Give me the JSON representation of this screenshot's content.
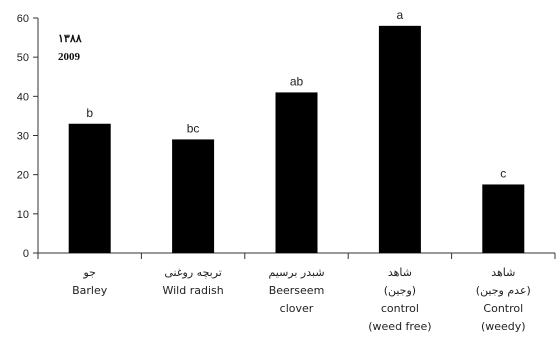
{
  "chart_data": {
    "type": "bar",
    "title": "",
    "xlabel": "",
    "ylabel": "",
    "ylim": [
      0,
      60
    ],
    "yticks": [
      "0",
      "10",
      "20",
      "30",
      "40",
      "50",
      "60"
    ],
    "annotations": [
      "۱۳۸۸",
      "2009"
    ],
    "categories": [
      {
        "lines": [
          "جو",
          "Barley"
        ]
      },
      {
        "lines": [
          "تربچه روغنی",
          "Wild radish"
        ]
      },
      {
        "lines": [
          "شبدر برسیم",
          "Beerseem",
          "clover"
        ]
      },
      {
        "lines": [
          "شاهد",
          "(وجین)",
          "control",
          "(weed free)"
        ]
      },
      {
        "lines": [
          "شاهد",
          "(عدم وجین)",
          "Control",
          "(weedy)"
        ]
      }
    ],
    "values": [
      33,
      29,
      41,
      58,
      17.5
    ],
    "letters": [
      "b",
      "bc",
      "ab",
      "a",
      "c"
    ],
    "grid": false,
    "legend": "none",
    "bar_color": "#000000"
  }
}
